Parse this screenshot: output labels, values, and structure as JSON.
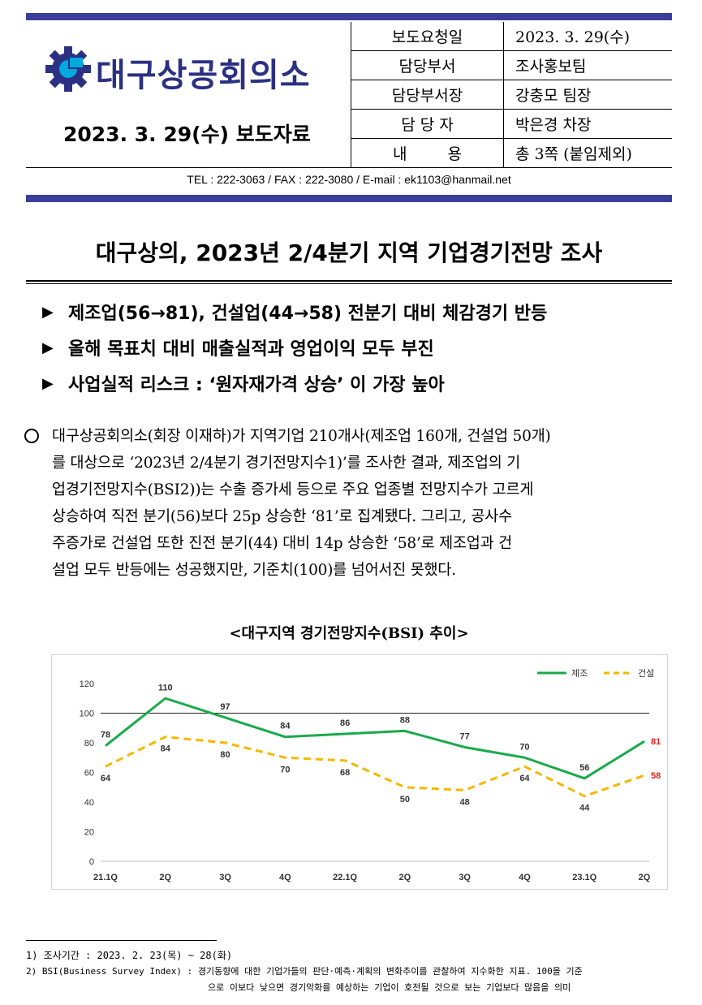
{
  "header": {
    "org_name": "대구상공회의소",
    "release_date": "2023. 3. 29(수) 보도자료",
    "info_rows": [
      {
        "label": "보도요청일",
        "value": "2023. 3. 29(수)"
      },
      {
        "label": "담당부서",
        "value": "조사홍보팀"
      },
      {
        "label": "담당부서장",
        "value": "강충모 팀장"
      },
      {
        "label": "담 당 자",
        "value": "박은경 차장"
      },
      {
        "label": "내 용",
        "value": "총 3쪽 (붙임제외)"
      }
    ],
    "contact": "TEL : 222-3063   /   FAX : 222-3080   /   E-mail : ek1103@hanmail.net"
  },
  "headline": "대구상의, 2023년 2/4분기 지역 기업경기전망 조사",
  "bullets": [
    "제조업(56→81), 건설업(44→58) 전분기 대비 체감경기 반등",
    "올해 목표치 대비 매출실적과 영업이익 모두 부진",
    "사업실적 리스크 : ‘원자재가격 상승’ 이 가장 높아"
  ],
  "body": {
    "lines": [
      "대구상공회의소(회장 이재하)가 지역기업 210개사(제조업 160개, 건설업 50개)",
      "를 대상으로 ‘2023년 2/4분기 경기전망지수1)’를 조사한 결과, 제조업의 기",
      "업경기전망지수(BSI2))는 수출 증가세 등으로 주요 업종별 전망지수가 고르게",
      "상승하여 직전 분기(56)보다 25p 상승한 ‘81’로 집계됐다. 그리고, 공사수",
      "주증가로 건설업 또한 진전 분기(44) 대비 14p 상승한 ‘58’로 제조업과 건",
      "설업 모두 반등에는 성공했지만, 기준치(100)를 넘어서진 못했다."
    ]
  },
  "chart_title": "<대구지역 경기전망지수(BSI) 추이>",
  "chart_data": {
    "type": "line",
    "categories": [
      "21.1Q",
      "2Q",
      "3Q",
      "4Q",
      "22.1Q",
      "2Q",
      "3Q",
      "4Q",
      "23.1Q",
      "2Q"
    ],
    "series": [
      {
        "name": "제조",
        "values": [
          78,
          110,
          97,
          84,
          86,
          88,
          77,
          70,
          56,
          81
        ],
        "color": "#1aaa4a",
        "dash": false
      },
      {
        "name": "건설",
        "values": [
          64,
          84,
          80,
          70,
          68,
          50,
          48,
          64,
          44,
          58
        ],
        "color": "#f5b800",
        "dash": true
      }
    ],
    "reference_line": 100,
    "ylim": [
      0,
      120
    ],
    "yticks": [
      0,
      20,
      40,
      60,
      80,
      100,
      120
    ],
    "legend_position": "top-right",
    "last_label_color": "#e02020",
    "grid": false
  },
  "footnotes": [
    "1) 조사기간 : 2023. 2. 23(목) ~ 28(화)",
    "2) BSI(Business Survey Index) : 경기동향에 대한 기업가들의 판단·예측·계획의 변화추이를 관찰하여 지수화한 지표. 100을 기준",
    "으로 이보다 낮으면 경기악화를  예상하는 기업이 호전될 것으로 보는 기업보다 많음을 의미"
  ],
  "colors": {
    "brand": "#2b3083",
    "bar": "#3b3f9a"
  }
}
